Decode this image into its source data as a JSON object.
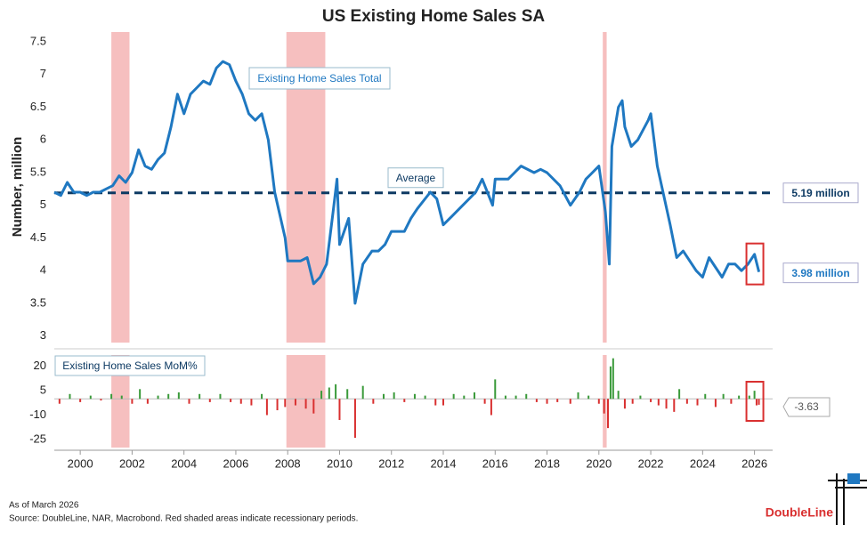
{
  "chart_data": [
    {
      "type": "line",
      "title": "US Existing Home Sales SA",
      "y_label": "Number, million",
      "annotation": "Existing Home Sales Total",
      "average_name": "Average",
      "average": 5.19,
      "average_label": "5.19 million",
      "last_label": "3.98 million",
      "xlim": [
        1999,
        2026.7
      ],
      "ylim": [
        2.9,
        7.65
      ],
      "yticks": [
        3.0,
        3.5,
        4.0,
        4.5,
        5.0,
        5.5,
        6.0,
        6.5,
        7.0,
        7.5
      ],
      "recessions": [
        [
          2001.2,
          2001.9
        ],
        [
          2007.95,
          2009.45
        ],
        [
          2020.15,
          2020.3
        ]
      ],
      "series": [
        {
          "name": "Existing Home Sales Total",
          "color": "#1f78c1",
          "x": [
            1999.0,
            1999.25,
            1999.5,
            1999.75,
            2000.0,
            2000.25,
            2000.5,
            2000.75,
            2001.0,
            2001.25,
            2001.5,
            2001.75,
            2002.0,
            2002.25,
            2002.5,
            2002.75,
            2003.0,
            2003.25,
            2003.5,
            2003.75,
            2004.0,
            2004.25,
            2004.5,
            2004.75,
            2005.0,
            2005.25,
            2005.5,
            2005.75,
            2006.0,
            2006.25,
            2006.5,
            2006.75,
            2007.0,
            2007.25,
            2007.5,
            2007.9,
            2008.0,
            2008.5,
            2008.75,
            2009.0,
            2009.25,
            2009.5,
            2009.75,
            2009.9,
            2010.0,
            2010.35,
            2010.6,
            2010.9,
            2011.25,
            2011.5,
            2011.75,
            2012.0,
            2012.5,
            2012.75,
            2013.0,
            2013.5,
            2013.75,
            2014.0,
            2014.5,
            2014.75,
            2015.25,
            2015.5,
            2015.9,
            2016.0,
            2016.5,
            2016.75,
            2017.0,
            2017.5,
            2017.75,
            2018.0,
            2018.5,
            2018.9,
            2019.25,
            2019.5,
            2019.75,
            2020.0,
            2020.25,
            2020.4,
            2020.5,
            2020.75,
            2020.9,
            2021.0,
            2021.25,
            2021.5,
            2021.9,
            2022.0,
            2022.25,
            2022.75,
            2022.9,
            2023.0,
            2023.25,
            2023.75,
            2024.0,
            2024.25,
            2024.75,
            2025.0,
            2025.25,
            2025.5,
            2025.75,
            2026.0,
            2026.17
          ],
          "values": [
            5.2,
            5.15,
            5.35,
            5.2,
            5.2,
            5.15,
            5.2,
            5.2,
            5.25,
            5.3,
            5.45,
            5.35,
            5.5,
            5.85,
            5.6,
            5.55,
            5.7,
            5.8,
            6.2,
            6.7,
            6.4,
            6.7,
            6.8,
            6.9,
            6.85,
            7.1,
            7.2,
            7.15,
            6.9,
            6.7,
            6.4,
            6.3,
            6.4,
            6.0,
            5.2,
            4.5,
            4.15,
            4.15,
            4.2,
            3.8,
            3.9,
            4.1,
            4.9,
            5.4,
            4.4,
            4.8,
            3.5,
            4.1,
            4.3,
            4.3,
            4.4,
            4.6,
            4.6,
            4.8,
            4.95,
            5.2,
            5.1,
            4.7,
            4.9,
            5.0,
            5.2,
            5.4,
            5.0,
            5.4,
            5.4,
            5.5,
            5.6,
            5.5,
            5.55,
            5.5,
            5.3,
            5.0,
            5.2,
            5.4,
            5.5,
            5.6,
            4.9,
            4.1,
            5.9,
            6.5,
            6.6,
            6.2,
            5.9,
            6.0,
            6.3,
            6.4,
            5.6,
            4.7,
            4.4,
            4.2,
            4.3,
            4.0,
            3.9,
            4.2,
            3.9,
            4.1,
            4.1,
            4.0,
            4.1,
            4.25,
            3.98
          ]
        }
      ]
    },
    {
      "type": "bar",
      "annotation": "Existing Home Sales MoM%",
      "xlim": [
        1999,
        2026.7
      ],
      "ylim": [
        -30,
        27
      ],
      "yticks": [
        -25,
        -10,
        5,
        20
      ],
      "xticks": [
        2000,
        2002,
        2004,
        2006,
        2008,
        2010,
        2012,
        2014,
        2016,
        2018,
        2020,
        2022,
        2024,
        2026
      ],
      "positive_color": "#3a9a3a",
      "negative_color": "#d93030",
      "series": [
        {
          "name": "Existing Home Sales MoM%",
          "x": [
            1999.2,
            1999.6,
            2000.0,
            2000.4,
            2000.8,
            2001.2,
            2001.6,
            2002.0,
            2002.3,
            2002.6,
            2003.0,
            2003.4,
            2003.8,
            2004.2,
            2004.6,
            2005.0,
            2005.4,
            2005.8,
            2006.2,
            2006.6,
            2007.0,
            2007.2,
            2007.6,
            2007.9,
            2008.3,
            2008.7,
            2009.0,
            2009.3,
            2009.6,
            2009.85,
            2010.0,
            2010.3,
            2010.6,
            2010.9,
            2011.3,
            2011.7,
            2012.1,
            2012.5,
            2012.9,
            2013.3,
            2013.7,
            2014.0,
            2014.4,
            2014.8,
            2015.2,
            2015.6,
            2015.85,
            2016.0,
            2016.4,
            2016.8,
            2017.2,
            2017.6,
            2018.0,
            2018.4,
            2018.9,
            2019.2,
            2019.6,
            2020.0,
            2020.2,
            2020.35,
            2020.45,
            2020.55,
            2020.75,
            2021.0,
            2021.3,
            2021.6,
            2022.0,
            2022.3,
            2022.6,
            2022.9,
            2023.1,
            2023.4,
            2023.8,
            2024.1,
            2024.5,
            2024.8,
            2025.1,
            2025.4,
            2025.8,
            2026.0,
            2026.08,
            2026.17
          ],
          "values": [
            -3,
            3,
            -2,
            2,
            -1,
            3,
            2,
            -3,
            6,
            -3,
            2,
            3,
            4,
            -3,
            3,
            -2,
            3,
            -2,
            -3,
            -4,
            3,
            -10,
            -7,
            -5,
            -4,
            -6,
            -9,
            5,
            7,
            9,
            -13,
            6,
            -24,
            8,
            -3,
            3,
            4,
            -2,
            3,
            2,
            -4,
            -4,
            3,
            2,
            4,
            -3,
            -10,
            12,
            2,
            2,
            3,
            -2,
            -3,
            -2,
            -3,
            4,
            2,
            -3,
            -9,
            -18,
            20,
            25,
            5,
            -6,
            -3,
            2,
            -2,
            -4,
            -6,
            -8,
            6,
            -3,
            -4,
            3,
            -5,
            3,
            -3,
            2,
            2,
            5,
            -4,
            -3.63
          ]
        }
      ]
    }
  ],
  "footnote": "As of March 2026",
  "source": "Source: DoubleLine, NAR, Macrobond. Red shaded areas indicate recessionary periods.",
  "logo": "DoubleLine"
}
